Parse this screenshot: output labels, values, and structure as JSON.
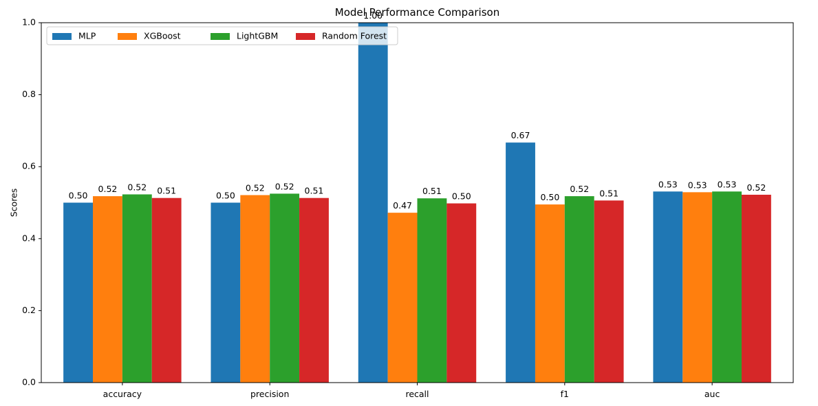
{
  "chart_data": {
    "type": "bar",
    "title": "Model Performance Comparison",
    "xlabel": "",
    "ylabel": "Scores",
    "ylim": [
      0,
      1.0
    ],
    "yticks": [
      "0.0",
      "0.2",
      "0.4",
      "0.6",
      "0.8",
      "1.0"
    ],
    "categories": [
      "accuracy",
      "precision",
      "recall",
      "f1",
      "auc"
    ],
    "legend_position": "top-left",
    "grid": false,
    "series": [
      {
        "name": "MLP",
        "color": "#1f77b4",
        "values": [
          0.5,
          0.5,
          1.0,
          0.667,
          0.531
        ],
        "labels": [
          "0.50",
          "0.50",
          "1.00",
          "0.67",
          "0.53"
        ]
      },
      {
        "name": "XGBoost",
        "color": "#ff7f0e",
        "values": [
          0.518,
          0.521,
          0.472,
          0.495,
          0.529
        ],
        "labels": [
          "0.52",
          "0.52",
          "0.47",
          "0.50",
          "0.53"
        ]
      },
      {
        "name": "LightGBM",
        "color": "#2ca02c",
        "values": [
          0.523,
          0.525,
          0.512,
          0.518,
          0.531
        ],
        "labels": [
          "0.52",
          "0.52",
          "0.51",
          "0.52",
          "0.53"
        ]
      },
      {
        "name": "Random Forest",
        "color": "#d62728",
        "values": [
          0.513,
          0.513,
          0.498,
          0.506,
          0.522
        ],
        "labels": [
          "0.51",
          "0.51",
          "0.50",
          "0.51",
          "0.52"
        ]
      }
    ]
  }
}
